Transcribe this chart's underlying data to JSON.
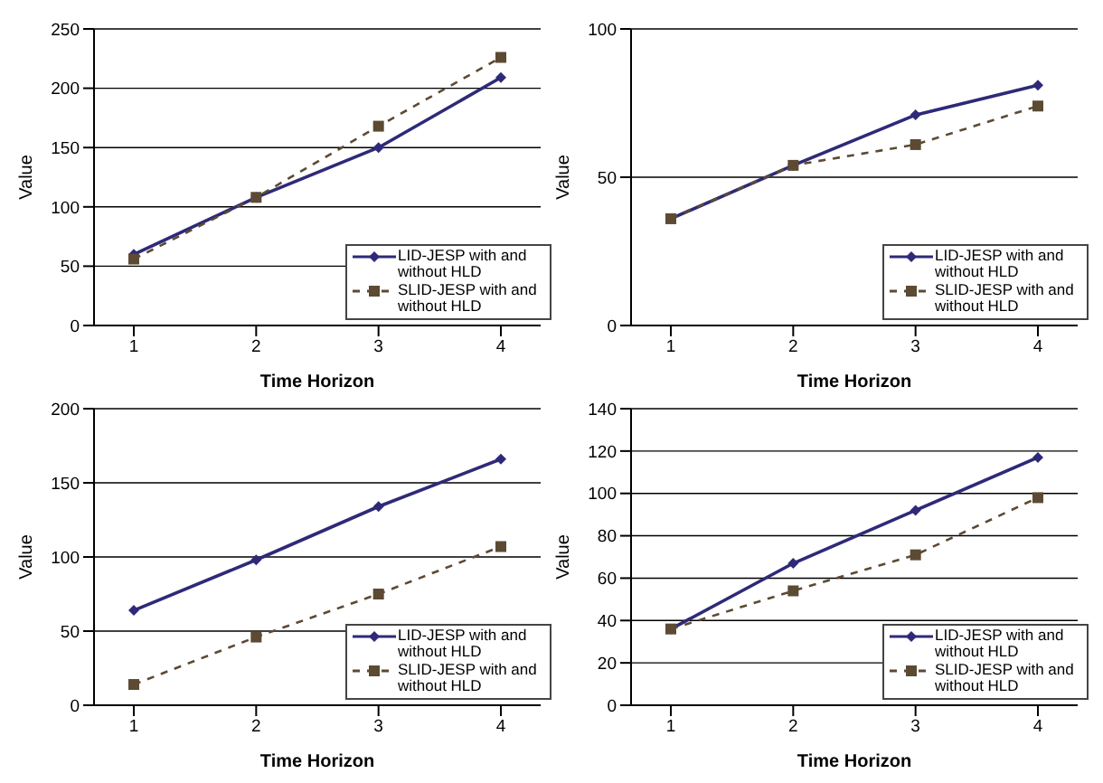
{
  "chart_data": [
    {
      "type": "line",
      "xlabel": "Time Horizon",
      "ylabel": "Value",
      "categories": [
        "1",
        "2",
        "3",
        "4"
      ],
      "ylim": [
        0,
        250
      ],
      "yticks": [
        0,
        50,
        100,
        150,
        200,
        250
      ],
      "grid": "y",
      "legend": "bottom right",
      "series": [
        {
          "name": "LID-JESP with and without HLD",
          "color": "#2e2a78",
          "marker": "diamond",
          "line_style": "solid",
          "values": [
            60,
            108,
            150,
            209
          ]
        },
        {
          "name": "SLID-JESP with and without HLD",
          "color": "#5c4a33",
          "marker": "square",
          "line_style": "dashed",
          "values": [
            56,
            108,
            168,
            226
          ]
        }
      ]
    },
    {
      "type": "line",
      "xlabel": "Time Horizon",
      "ylabel": "Value",
      "categories": [
        "1",
        "2",
        "3",
        "4"
      ],
      "ylim": [
        0,
        100
      ],
      "yticks": [
        0,
        50,
        100
      ],
      "grid": "y",
      "legend": "bottom right",
      "series": [
        {
          "name": "LID-JESP with and without HLD",
          "color": "#2e2a78",
          "marker": "diamond",
          "line_style": "solid",
          "values": [
            36,
            54,
            71,
            81
          ]
        },
        {
          "name": "SLID-JESP with and without HLD",
          "color": "#5c4a33",
          "marker": "square",
          "line_style": "dashed",
          "values": [
            36,
            54,
            61,
            74
          ]
        }
      ]
    },
    {
      "type": "line",
      "xlabel": "Time Horizon",
      "ylabel": "Value",
      "categories": [
        "1",
        "2",
        "3",
        "4"
      ],
      "ylim": [
        0,
        200
      ],
      "yticks": [
        0,
        50,
        100,
        150,
        200
      ],
      "grid": "y",
      "legend": "bottom right",
      "series": [
        {
          "name": "LID-JESP with and without HLD",
          "color": "#2e2a78",
          "marker": "diamond",
          "line_style": "solid",
          "values": [
            64,
            98,
            134,
            166
          ]
        },
        {
          "name": "SLID-JESP with and without HLD",
          "color": "#5c4a33",
          "marker": "square",
          "line_style": "dashed",
          "values": [
            14,
            46,
            75,
            107
          ]
        }
      ]
    },
    {
      "type": "line",
      "xlabel": "Time Horizon",
      "ylabel": "Value",
      "categories": [
        "1",
        "2",
        "3",
        "4"
      ],
      "ylim": [
        0,
        140
      ],
      "yticks": [
        0,
        20,
        40,
        60,
        80,
        100,
        120,
        140
      ],
      "grid": "y",
      "legend": "bottom right",
      "series": [
        {
          "name": "LID-JESP with and without HLD",
          "color": "#2e2a78",
          "marker": "diamond",
          "line_style": "solid",
          "values": [
            36,
            67,
            92,
            117
          ]
        },
        {
          "name": "SLID-JESP with and without HLD",
          "color": "#5c4a33",
          "marker": "square",
          "line_style": "dashed",
          "values": [
            36,
            54,
            71,
            98
          ]
        }
      ]
    }
  ]
}
